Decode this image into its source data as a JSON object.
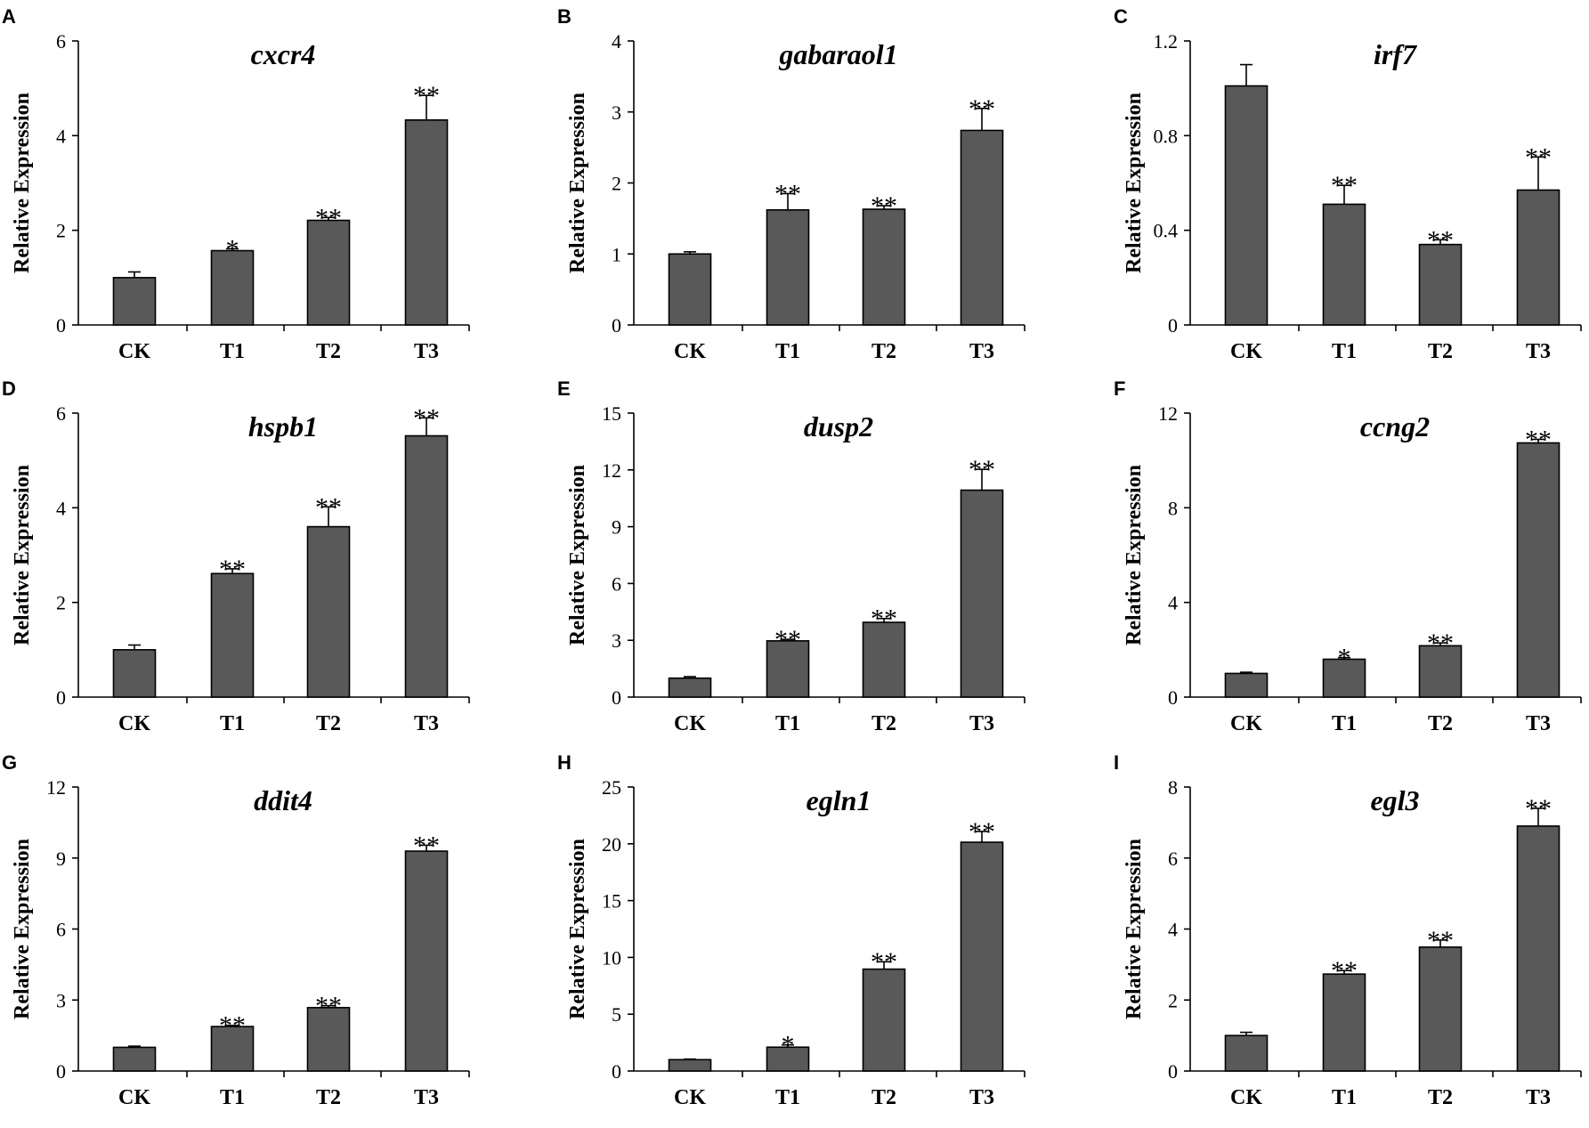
{
  "chart_data": [
    {
      "panel": "A",
      "type": "bar",
      "title": "cxcr4",
      "ylabel": "Relative Expression",
      "xlabel": "",
      "categories": [
        "CK",
        "T1",
        "T2",
        "T3"
      ],
      "values": [
        1.0,
        1.57,
        2.21,
        4.33
      ],
      "errors": [
        0.12,
        0.04,
        0.06,
        0.52
      ],
      "significance": [
        "",
        "*",
        "**",
        "**"
      ],
      "ylim": [
        0,
        6
      ],
      "yticks": [
        "0",
        "2",
        "4",
        "6"
      ]
    },
    {
      "panel": "B",
      "type": "bar",
      "title": "gabaraol1",
      "ylabel": "Relative Expression",
      "xlabel": "",
      "categories": [
        "CK",
        "T1",
        "T2",
        "T3"
      ],
      "values": [
        1.0,
        1.62,
        1.63,
        2.74
      ],
      "errors": [
        0.03,
        0.23,
        0.05,
        0.31
      ],
      "significance": [
        "",
        "**",
        "**",
        "**"
      ],
      "ylim": [
        0,
        4
      ],
      "yticks": [
        "0",
        "1",
        "2",
        "3",
        "4"
      ]
    },
    {
      "panel": "C",
      "type": "bar",
      "title": "irf7",
      "ylabel": "Relative Expression",
      "xlabel": "",
      "categories": [
        "CK",
        "T1",
        "T2",
        "T3"
      ],
      "values": [
        1.01,
        0.51,
        0.34,
        0.57
      ],
      "errors": [
        0.09,
        0.08,
        0.02,
        0.14
      ],
      "significance": [
        "",
        "**",
        "**",
        "**"
      ],
      "ylim": [
        0,
        1.2
      ],
      "yticks": [
        "0",
        "0.4",
        "0.8",
        "1.2"
      ]
    },
    {
      "panel": "D",
      "type": "bar",
      "title": "hspb1",
      "ylabel": "Relative Expression",
      "xlabel": "",
      "categories": [
        "CK",
        "T1",
        "T2",
        "T3"
      ],
      "values": [
        1.0,
        2.61,
        3.6,
        5.52
      ],
      "errors": [
        0.1,
        0.1,
        0.42,
        0.38
      ],
      "significance": [
        "",
        "**",
        "**",
        "**"
      ],
      "ylim": [
        0,
        6
      ],
      "yticks": [
        "0",
        "2",
        "4",
        "6"
      ]
    },
    {
      "panel": "E",
      "type": "bar",
      "title": "dusp2",
      "ylabel": "Relative Expression",
      "xlabel": "",
      "categories": [
        "CK",
        "T1",
        "T2",
        "T3"
      ],
      "values": [
        1.0,
        2.97,
        3.95,
        10.93
      ],
      "errors": [
        0.08,
        0.08,
        0.2,
        1.1
      ],
      "significance": [
        "",
        "**",
        "**",
        "**"
      ],
      "ylim": [
        0,
        15
      ],
      "yticks": [
        "0",
        "3",
        "6",
        "9",
        "12",
        "15"
      ]
    },
    {
      "panel": "F",
      "type": "bar",
      "title": "ccng2",
      "ylabel": "Relative Expression",
      "xlabel": "",
      "categories": [
        "CK",
        "T1",
        "T2",
        "T3"
      ],
      "values": [
        1.0,
        1.6,
        2.17,
        10.74
      ],
      "errors": [
        0.05,
        0.07,
        0.12,
        0.15
      ],
      "significance": [
        "",
        "*",
        "**",
        "**"
      ],
      "ylim": [
        0,
        12
      ],
      "yticks": [
        "0",
        "4",
        "8",
        "12"
      ]
    },
    {
      "panel": "G",
      "type": "bar",
      "title": "ddit4",
      "ylabel": "Relative Expression",
      "xlabel": "",
      "categories": [
        "CK",
        "T1",
        "T2",
        "T3"
      ],
      "values": [
        1.0,
        1.88,
        2.68,
        9.29
      ],
      "errors": [
        0.05,
        0.05,
        0.08,
        0.25
      ],
      "significance": [
        "",
        "**",
        "**",
        "**"
      ],
      "ylim": [
        0,
        12
      ],
      "yticks": [
        "0",
        "3",
        "6",
        "9",
        "12"
      ]
    },
    {
      "panel": "H",
      "type": "bar",
      "title": "egln1",
      "ylabel": "Relative Expression",
      "xlabel": "",
      "categories": [
        "CK",
        "T1",
        "T2",
        "T3"
      ],
      "values": [
        1.0,
        2.1,
        8.97,
        20.14
      ],
      "errors": [
        0.05,
        0.2,
        0.65,
        0.95
      ],
      "significance": [
        "",
        "*",
        "**",
        "**"
      ],
      "ylim": [
        0,
        25
      ],
      "yticks": [
        "0",
        "5",
        "10",
        "15",
        "20",
        "25"
      ]
    },
    {
      "panel": "I",
      "type": "bar",
      "title": "egl3",
      "ylabel": "Relative Expression",
      "xlabel": "",
      "categories": [
        "CK",
        "T1",
        "T2",
        "T3"
      ],
      "values": [
        1.0,
        2.73,
        3.49,
        6.9
      ],
      "errors": [
        0.09,
        0.1,
        0.2,
        0.5
      ],
      "significance": [
        "",
        "**",
        "**",
        "**"
      ],
      "ylim": [
        0,
        8
      ],
      "yticks": [
        "0",
        "2",
        "4",
        "6",
        "8"
      ]
    }
  ]
}
